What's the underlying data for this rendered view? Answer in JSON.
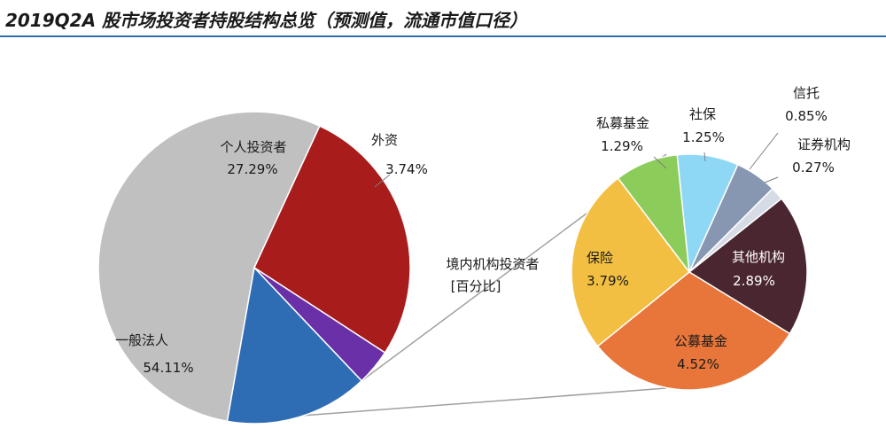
{
  "title": "2019Q2A 股市场投资者持股结构总览（预测值，流通市值口径）",
  "chart_data": [
    {
      "type": "pie",
      "slices": [
        {
          "name": "一般法人",
          "value": 54.11,
          "label": "54.11%",
          "color": "#c0c0c0"
        },
        {
          "name": "个人投资者",
          "value": 27.29,
          "label": "27.29%",
          "color": "#a81c1c"
        },
        {
          "name": "外资",
          "value": 3.74,
          "label": "3.74%",
          "color": "#6a30a8"
        },
        {
          "name": "境内机构投资者",
          "value": 14.86,
          "label": "[百分比]",
          "color": "#2e6db4"
        }
      ]
    },
    {
      "type": "pie",
      "slices": [
        {
          "name": "保险",
          "value": 3.79,
          "label": "3.79%",
          "color": "#f2bf42"
        },
        {
          "name": "私募基金",
          "value": 1.29,
          "label": "1.29%",
          "color": "#8ccc5a"
        },
        {
          "name": "社保",
          "value": 1.25,
          "label": "1.25%",
          "color": "#8fd8f5"
        },
        {
          "name": "信托",
          "value": 0.85,
          "label": "0.85%",
          "color": "#8797b2"
        },
        {
          "name": "证券机构",
          "value": 0.27,
          "label": "0.27%",
          "color": "#d6dce6"
        },
        {
          "name": "其他机构",
          "value": 2.89,
          "label": "2.89%",
          "color": "#4a2630"
        },
        {
          "name": "公募基金",
          "value": 4.52,
          "label": "4.52%",
          "color": "#e8763a"
        }
      ]
    }
  ]
}
